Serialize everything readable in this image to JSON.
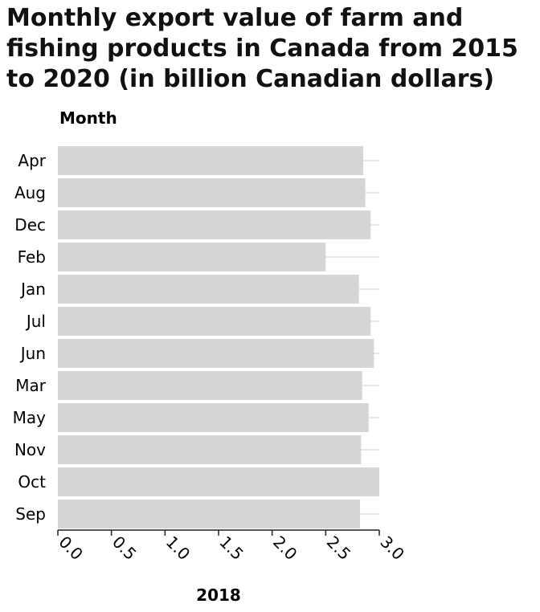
{
  "chart_data": {
    "type": "bar",
    "orientation": "horizontal",
    "title": "Monthly export value of farm and fishing products in Canada from 2015 to 2020 (in billion Canadian dollars)",
    "ylabel": "Month",
    "xlabel": "2018",
    "categories": [
      "Apr",
      "Aug",
      "Dec",
      "Feb",
      "Jan",
      "Jul",
      "Jun",
      "Mar",
      "May",
      "Nov",
      "Oct",
      "Sep"
    ],
    "values": [
      2.85,
      2.87,
      2.92,
      2.5,
      2.81,
      2.92,
      2.95,
      2.84,
      2.9,
      2.83,
      3.0,
      2.82
    ],
    "xlim": [
      0,
      3.0
    ],
    "xticks": [
      "0.0",
      "0.5",
      "1.0",
      "1.5",
      "2.0",
      "2.5",
      "3.0"
    ],
    "bar_color": "#d6d6d6",
    "grid": true
  }
}
